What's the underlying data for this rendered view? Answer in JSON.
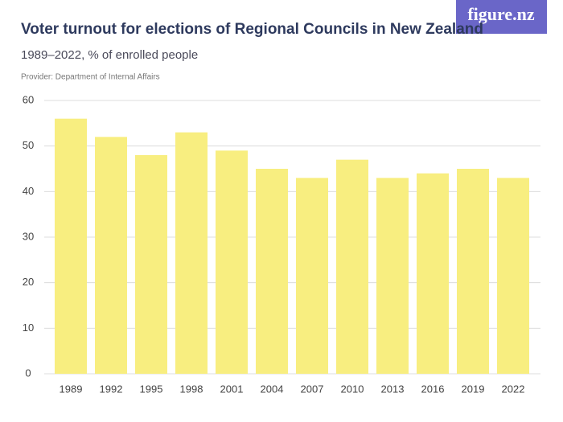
{
  "chart_data": {
    "type": "bar",
    "title": "Voter turnout for elections of Regional Councils in New Zealand",
    "subtitle": "1989–2022, % of enrolled people",
    "provider": "Provider: Department of Internal Affairs",
    "logo": "figure.nz",
    "categories": [
      "1989",
      "1992",
      "1995",
      "1998",
      "2001",
      "2004",
      "2007",
      "2010",
      "2013",
      "2016",
      "2019",
      "2022"
    ],
    "values": [
      56,
      52,
      48,
      53,
      49,
      45,
      43,
      47,
      43,
      44,
      45,
      43
    ],
    "color": "#f8ee80",
    "ylim": [
      0,
      60
    ],
    "yticks": [
      0,
      10,
      20,
      30,
      40,
      50,
      60
    ],
    "grid": true
  }
}
